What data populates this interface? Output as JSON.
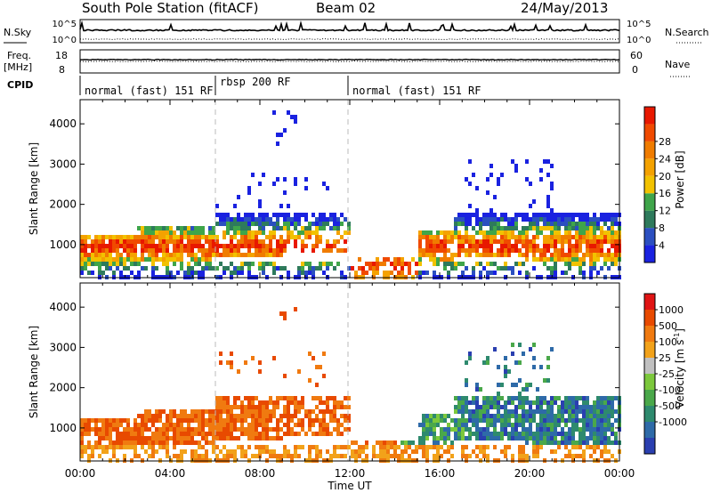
{
  "header": {
    "station": "South Pole Station (fitACF)",
    "beam": "Beam 02",
    "date": "24/May/2013"
  },
  "left_labels": {
    "nsky": "N.Sky",
    "freq": "Freq.",
    "freq_unit": "[MHz]",
    "cpid": "CPID"
  },
  "right_labels": {
    "nsearch": "N.Search",
    "nave": "Nave"
  },
  "cpid_segments": [
    {
      "label": "normal (fast) 151 RF",
      "start_hour": 0
    },
    {
      "label": "rbsp 200 RF",
      "start_hour": 6
    },
    {
      "label": "normal (fast) 151 RF",
      "start_hour": 12
    }
  ],
  "chart_data": [
    {
      "type": "line",
      "id": "noise",
      "left_ticks": [
        "10^5",
        "10^0"
      ],
      "right_ticks": [
        "10^5",
        "10^0"
      ]
    },
    {
      "type": "line",
      "id": "frequency",
      "left_ticks": [
        "18",
        "8"
      ],
      "right_ticks": [
        "60",
        "0"
      ],
      "ylim": [
        8,
        18
      ]
    },
    {
      "type": "heatmap",
      "id": "power",
      "ylabel": "Slant Range [km]",
      "xlim": [
        0,
        24
      ],
      "ylim": [
        180,
        4600
      ],
      "yticks": [
        1000,
        2000,
        3000,
        4000
      ],
      "colorbar_label": "Power [dB]",
      "colorbar_ticks": [
        "4",
        "8",
        "12",
        "16",
        "20",
        "24",
        "28"
      ],
      "colors": [
        "#1a22e0",
        "#2b4fc0",
        "#2e7a5c",
        "#3fa54a",
        "#f2c200",
        "#f4a200",
        "#f07c00",
        "#f04a00",
        "#e81800"
      ]
    },
    {
      "type": "heatmap",
      "id": "velocity",
      "ylabel": "Slant Range [km]",
      "xlabel": "Time UT",
      "xlim": [
        0,
        24
      ],
      "ylim": [
        180,
        4600
      ],
      "yticks": [
        1000,
        2000,
        3000,
        4000
      ],
      "xticks": [
        "00:00",
        "04:00",
        "08:00",
        "12:00",
        "16:00",
        "20:00",
        "00:00"
      ],
      "colorbar_label": "Velocity [m s^-1]",
      "colorbar_ticks": [
        "1000",
        "500",
        "100",
        "25",
        "-25",
        "-100",
        "-500",
        "-1000"
      ],
      "colors": [
        "#2a3fb0",
        "#2e6aa8",
        "#2e8a6e",
        "#4aa84a",
        "#7cc83c",
        "#c0c0c0",
        "#f2a21a",
        "#f07a10",
        "#e84a00",
        "#e01414"
      ]
    }
  ]
}
